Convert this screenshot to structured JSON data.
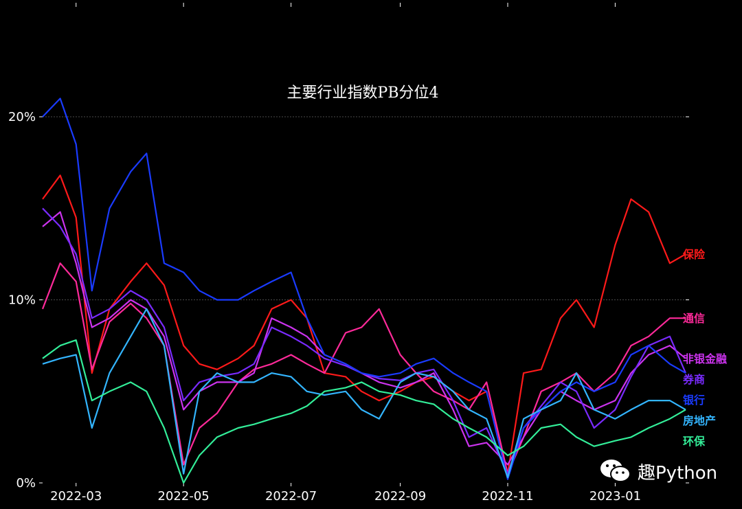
{
  "chart_data": {
    "type": "line",
    "title": "主要行业指数PB分位4",
    "xlabel": "",
    "ylabel": "",
    "x_ticks": [
      "2022-03",
      "2022-05",
      "2022-07",
      "2022-09",
      "2022-11",
      "2023-01"
    ],
    "y_ticks": [
      "0%",
      "10%",
      "20%"
    ],
    "ylim": [
      0,
      0.2
    ],
    "grid": "horizontal-dashed",
    "legend": "inline-right",
    "x": [
      "2022-02-10",
      "2022-02-20",
      "2022-03-01",
      "2022-03-10",
      "2022-03-20",
      "2022-04-01",
      "2022-04-10",
      "2022-04-20",
      "2022-05-01",
      "2022-05-10",
      "2022-05-20",
      "2022-06-01",
      "2022-06-10",
      "2022-06-20",
      "2022-07-01",
      "2022-07-10",
      "2022-07-20",
      "2022-08-01",
      "2022-08-10",
      "2022-08-20",
      "2022-09-01",
      "2022-09-10",
      "2022-09-20",
      "2022-10-01",
      "2022-10-10",
      "2022-10-20",
      "2022-11-01",
      "2022-11-10",
      "2022-11-20",
      "2022-12-01",
      "2022-12-10",
      "2022-12-20",
      "2023-01-01",
      "2023-01-10",
      "2023-01-20",
      "2023-02-01",
      "2023-02-10"
    ],
    "series": [
      {
        "name": "保险",
        "color": "#ff1a1a",
        "values": [
          0.155,
          0.168,
          0.145,
          0.06,
          0.095,
          0.11,
          0.12,
          0.108,
          0.075,
          0.065,
          0.062,
          0.068,
          0.075,
          0.095,
          0.1,
          0.09,
          0.06,
          0.058,
          0.05,
          0.045,
          0.05,
          0.055,
          0.058,
          0.05,
          0.045,
          0.05,
          0.005,
          0.06,
          0.062,
          0.09,
          0.1,
          0.085,
          0.13,
          0.155,
          0.148,
          0.12,
          0.125
        ]
      },
      {
        "name": "通信",
        "color": "#ff2a9a",
        "values": [
          0.095,
          0.12,
          0.11,
          0.062,
          0.088,
          0.098,
          0.09,
          0.075,
          0.01,
          0.03,
          0.038,
          0.055,
          0.062,
          0.065,
          0.07,
          0.065,
          0.06,
          0.082,
          0.085,
          0.095,
          0.07,
          0.06,
          0.05,
          0.045,
          0.04,
          0.055,
          0.005,
          0.025,
          0.05,
          0.055,
          0.06,
          0.05,
          0.06,
          0.075,
          0.08,
          0.09,
          0.09
        ]
      },
      {
        "name": "非银金融",
        "color": "#cc33ee",
        "values": [
          0.14,
          0.148,
          0.12,
          0.085,
          0.09,
          0.1,
          0.095,
          0.08,
          0.04,
          0.05,
          0.055,
          0.055,
          0.06,
          0.09,
          0.085,
          0.08,
          0.07,
          0.065,
          0.06,
          0.055,
          0.052,
          0.055,
          0.06,
          0.04,
          0.02,
          0.022,
          0.01,
          0.025,
          0.04,
          0.05,
          0.045,
          0.04,
          0.045,
          0.06,
          0.07,
          0.075,
          0.068
        ]
      },
      {
        "name": "券商",
        "color": "#7a2bff",
        "values": [
          0.15,
          0.14,
          0.125,
          0.09,
          0.095,
          0.105,
          0.1,
          0.085,
          0.045,
          0.055,
          0.058,
          0.06,
          0.065,
          0.085,
          0.08,
          0.075,
          0.068,
          0.064,
          0.06,
          0.057,
          0.056,
          0.06,
          0.062,
          0.045,
          0.025,
          0.03,
          0.005,
          0.03,
          0.042,
          0.055,
          0.05,
          0.03,
          0.04,
          0.058,
          0.075,
          0.08,
          0.06
        ]
      },
      {
        "name": "银行",
        "color": "#1a3bff",
        "values": [
          0.2,
          0.21,
          0.185,
          0.105,
          0.15,
          0.17,
          0.18,
          0.12,
          0.115,
          0.105,
          0.1,
          0.1,
          0.105,
          0.11,
          0.115,
          0.09,
          0.07,
          0.065,
          0.06,
          0.058,
          0.06,
          0.065,
          0.068,
          0.06,
          0.055,
          0.05,
          0.002,
          0.03,
          0.04,
          0.05,
          0.055,
          0.05,
          0.055,
          0.07,
          0.075,
          0.065,
          0.06
        ]
      },
      {
        "name": "房地产",
        "color": "#33b5ff",
        "values": [
          0.065,
          0.068,
          0.07,
          0.03,
          0.06,
          0.08,
          0.095,
          0.075,
          0.005,
          0.05,
          0.06,
          0.055,
          0.055,
          0.06,
          0.058,
          0.05,
          0.048,
          0.05,
          0.04,
          0.035,
          0.055,
          0.06,
          0.058,
          0.05,
          0.04,
          0.035,
          0.003,
          0.035,
          0.04,
          0.045,
          0.06,
          0.04,
          0.035,
          0.04,
          0.045,
          0.045,
          0.04
        ]
      },
      {
        "name": "环保",
        "color": "#33ee99",
        "values": [
          0.068,
          0.075,
          0.078,
          0.045,
          0.05,
          0.055,
          0.05,
          0.03,
          0.0,
          0.015,
          0.025,
          0.03,
          0.032,
          0.035,
          0.038,
          0.042,
          0.05,
          0.052,
          0.055,
          0.05,
          0.048,
          0.045,
          0.043,
          0.035,
          0.03,
          0.025,
          0.015,
          0.02,
          0.03,
          0.032,
          0.025,
          0.02,
          0.023,
          0.025,
          0.03,
          0.035,
          0.04
        ]
      }
    ]
  },
  "watermark": {
    "icon": "wechat-icon",
    "text": "趣Python"
  }
}
